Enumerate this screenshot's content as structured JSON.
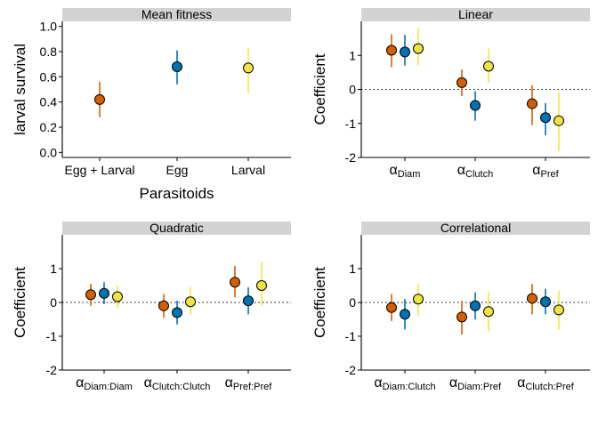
{
  "colors": {
    "egg_larval": "#d55e00",
    "egg": "#0072b2",
    "larval": "#f0e442",
    "strip": "#d3d3d3"
  },
  "chart_data": [
    {
      "type": "scatter",
      "panel": "Mean fitness",
      "xlabel": "Parasitoids",
      "ylabel": "larval survival",
      "categories": [
        "Egg + Larval",
        "Egg",
        "Larval"
      ],
      "ylim": [
        -0.04,
        1.04
      ],
      "yticks": [
        0.0,
        0.2,
        0.4,
        0.6,
        0.8,
        1.0
      ],
      "ytick_labels": [
        "0.0",
        "0.2",
        "0.4",
        "0.6",
        "0.8",
        "1.0"
      ],
      "points": [
        {
          "cat": 0,
          "estimate": 0.42,
          "lower": 0.28,
          "upper": 0.56,
          "color": "#d55e00"
        },
        {
          "cat": 1,
          "estimate": 0.68,
          "lower": 0.54,
          "upper": 0.81,
          "color": "#0072b2"
        },
        {
          "cat": 2,
          "estimate": 0.67,
          "lower": 0.47,
          "upper": 0.83,
          "color": "#f0e442"
        }
      ]
    },
    {
      "type": "scatter",
      "panel": "Linear",
      "ylabel": "Coefficient",
      "xlabel": "",
      "categories": [
        {
          "sym": "α",
          "sub": "Diam"
        },
        {
          "sym": "α",
          "sub": "Clutch"
        },
        {
          "sym": "α",
          "sub": "Pref"
        }
      ],
      "ylim": [
        -2,
        2
      ],
      "yticks": [
        -2,
        -1,
        0,
        1
      ],
      "ytick_labels": [
        "-2",
        "-1",
        "0",
        "1"
      ],
      "zero_line": true,
      "series": [
        {
          "color": "#d55e00",
          "estimates": [
            1.15,
            0.2,
            -0.42
          ],
          "lower": [
            0.65,
            -0.2,
            -1.05
          ],
          "upper": [
            1.62,
            0.58,
            0.12
          ]
        },
        {
          "color": "#0072b2",
          "estimates": [
            1.1,
            -0.47,
            -0.83
          ],
          "lower": [
            0.7,
            -0.92,
            -1.35
          ],
          "upper": [
            1.6,
            -0.05,
            -0.4
          ]
        },
        {
          "color": "#f0e442",
          "estimates": [
            1.2,
            0.68,
            -0.92
          ],
          "lower": [
            0.72,
            0.2,
            -1.82
          ],
          "upper": [
            1.8,
            1.2,
            -0.08
          ]
        }
      ]
    },
    {
      "type": "scatter",
      "panel": "Quadratic",
      "ylabel": "Coefficient",
      "xlabel": "",
      "categories": [
        {
          "sym": "α",
          "sub": "Diam:Diam"
        },
        {
          "sym": "α",
          "sub": "Clutch:Clutch"
        },
        {
          "sym": "α",
          "sub": "Pref:Pref"
        }
      ],
      "ylim": [
        -2,
        2
      ],
      "yticks": [
        -2,
        -1,
        0,
        1
      ],
      "ytick_labels": [
        "-2",
        "-1",
        "0",
        "1"
      ],
      "zero_line": true,
      "series": [
        {
          "color": "#d55e00",
          "estimates": [
            0.23,
            -0.1,
            0.6
          ],
          "lower": [
            -0.1,
            -0.45,
            0.15
          ],
          "upper": [
            0.55,
            0.25,
            1.08
          ]
        },
        {
          "color": "#0072b2",
          "estimates": [
            0.27,
            -0.3,
            0.05
          ],
          "lower": [
            -0.05,
            -0.65,
            -0.35
          ],
          "upper": [
            0.6,
            0.05,
            0.45
          ]
        },
        {
          "color": "#f0e442",
          "estimates": [
            0.17,
            0.02,
            0.5
          ],
          "lower": [
            -0.15,
            -0.35,
            -0.1
          ],
          "upper": [
            0.5,
            0.45,
            1.2
          ]
        }
      ]
    },
    {
      "type": "scatter",
      "panel": "Correlational",
      "ylabel": "Coefficient",
      "xlabel": "",
      "categories": [
        {
          "sym": "α",
          "sub": "Diam:Clutch"
        },
        {
          "sym": "α",
          "sub": "Diam:Pref"
        },
        {
          "sym": "α",
          "sub": "Clutch:Pref"
        }
      ],
      "ylim": [
        -2,
        2
      ],
      "yticks": [
        -2,
        -1,
        0,
        1
      ],
      "ytick_labels": [
        "-2",
        "-1",
        "0",
        "1"
      ],
      "zero_line": true,
      "series": [
        {
          "color": "#d55e00",
          "estimates": [
            -0.15,
            -0.43,
            0.12
          ],
          "lower": [
            -0.55,
            -0.95,
            -0.35
          ],
          "upper": [
            0.25,
            0.05,
            0.55
          ]
        },
        {
          "color": "#0072b2",
          "estimates": [
            -0.35,
            -0.1,
            0.02
          ],
          "lower": [
            -0.8,
            -0.5,
            -0.35
          ],
          "upper": [
            0.1,
            0.3,
            0.4
          ]
        },
        {
          "color": "#f0e442",
          "estimates": [
            0.1,
            -0.27,
            -0.22
          ],
          "lower": [
            -0.4,
            -0.85,
            -0.8
          ],
          "upper": [
            0.55,
            0.3,
            0.35
          ]
        }
      ]
    }
  ]
}
